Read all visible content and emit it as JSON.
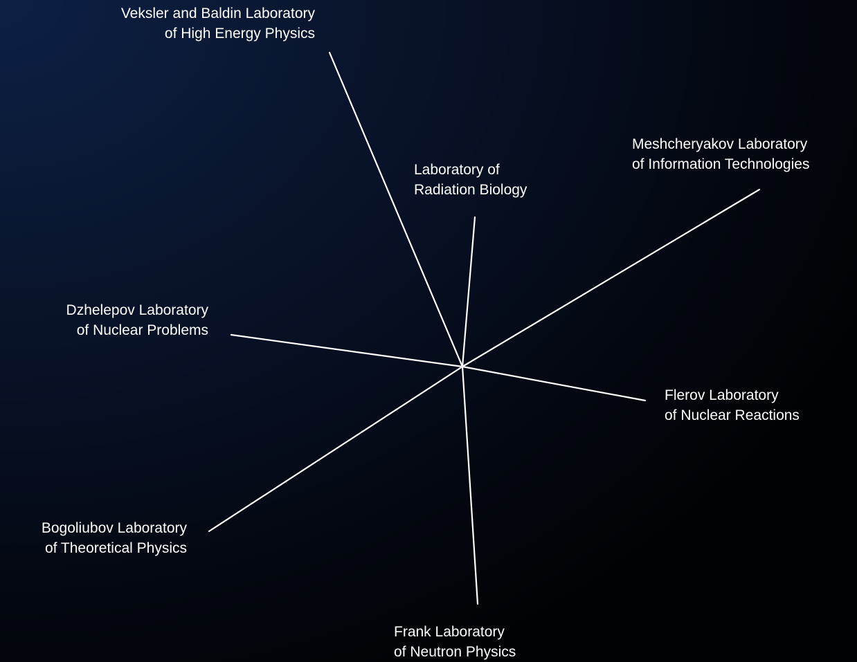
{
  "labs": [
    {
      "id": "vbhep",
      "line1": "Veksler and Baldin Laboratory",
      "line2": "of High Energy Physics"
    },
    {
      "id": "lrb",
      "line1": "Laboratory of",
      "line2": "Radiation Biology"
    },
    {
      "id": "lit",
      "line1": "Meshcheryakov Laboratory",
      "line2": "of Information Technologies"
    },
    {
      "id": "dlnp",
      "line1": "Dzhelepov Laboratory",
      "line2": "of Nuclear Problems"
    },
    {
      "id": "flnr",
      "line1": "Flerov Laboratory",
      "line2": "of Nuclear Reactions"
    },
    {
      "id": "bltp",
      "line1": "Bogoliubov Laboratory",
      "line2": "of Theoretical Physics"
    },
    {
      "id": "flnp",
      "line1": "Frank Laboratory",
      "line2": "of Neutron Physics"
    }
  ],
  "colors": {
    "line": "#ffffff",
    "text": "#ffffff"
  }
}
